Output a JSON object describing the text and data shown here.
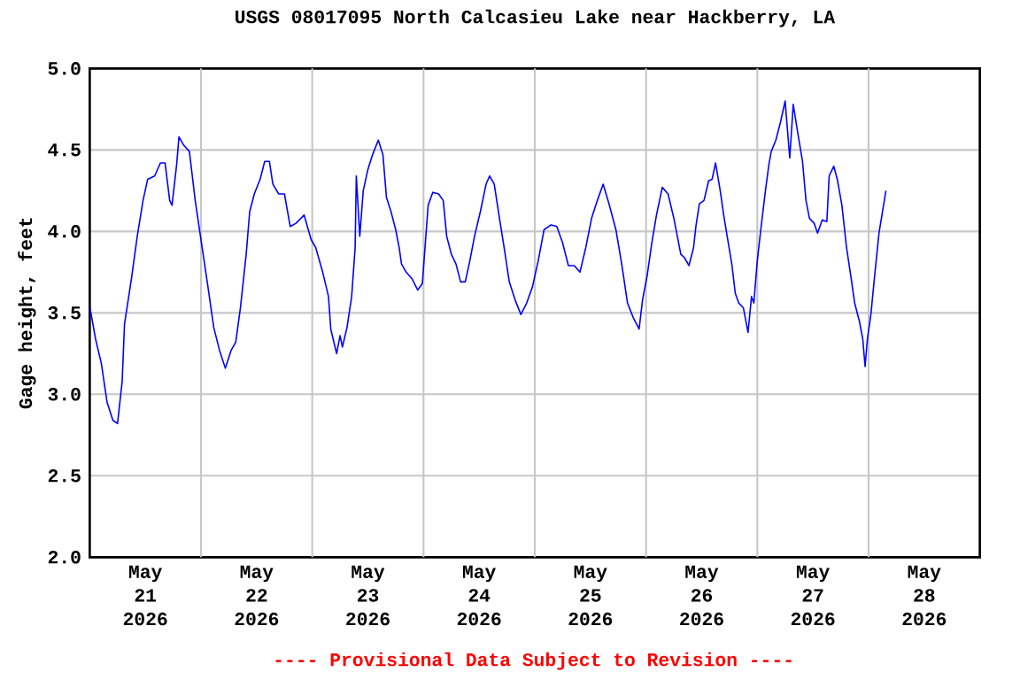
{
  "chart_data": {
    "type": "line",
    "title": "USGS 08017095 North Calcasieu Lake near Hackberry, LA",
    "ylabel": "Gage height, feet",
    "annotations": [
      "---- Provisional Data Subject to Revision ----"
    ],
    "x": [
      "2026-05-21T00:00",
      "2026-05-21T01:15",
      "2026-05-21T02:30",
      "2026-05-21T03:45",
      "2026-05-21T05:00",
      "2026-05-21T06:00",
      "2026-05-21T07:00",
      "2026-05-21T07:30",
      "2026-05-21T09:00",
      "2026-05-21T10:15",
      "2026-05-21T11:30",
      "2026-05-21T12:30",
      "2026-05-21T14:00",
      "2026-05-21T15:15",
      "2026-05-21T16:15",
      "2026-05-21T17:15",
      "2026-05-21T17:45",
      "2026-05-21T18:45",
      "2026-05-21T19:15",
      "2026-05-21T20:15",
      "2026-05-21T21:30",
      "2026-05-21T22:45",
      "2026-05-22T00:15",
      "2026-05-22T01:30",
      "2026-05-22T02:45",
      "2026-05-22T04:00",
      "2026-05-22T05:15",
      "2026-05-22T06:30",
      "2026-05-22T07:30",
      "2026-05-22T08:30",
      "2026-05-22T09:45",
      "2026-05-22T10:30",
      "2026-05-22T11:30",
      "2026-05-22T12:45",
      "2026-05-22T13:45",
      "2026-05-22T14:45",
      "2026-05-22T15:30",
      "2026-05-22T16:45",
      "2026-05-22T18:00",
      "2026-05-22T19:15",
      "2026-05-22T20:30",
      "2026-05-22T22:15",
      "2026-05-22T23:45",
      "2026-05-23T00:45",
      "2026-05-23T02:15",
      "2026-05-23T03:30",
      "2026-05-23T04:00",
      "2026-05-23T05:15",
      "2026-05-23T06:00",
      "2026-05-23T06:30",
      "2026-05-23T07:30",
      "2026-05-23T08:30",
      "2026-05-23T09:15",
      "2026-05-23T09:30",
      "2026-05-23T10:15",
      "2026-05-23T11:00",
      "2026-05-23T12:00",
      "2026-05-23T13:00",
      "2026-05-23T14:15",
      "2026-05-23T15:15",
      "2026-05-23T16:00",
      "2026-05-23T17:00",
      "2026-05-23T18:00",
      "2026-05-23T18:45",
      "2026-05-23T19:15",
      "2026-05-23T20:15",
      "2026-05-23T21:30",
      "2026-05-23T22:45",
      "2026-05-23T23:45",
      "2026-05-24T00:30",
      "2026-05-24T01:00",
      "2026-05-24T02:00",
      "2026-05-24T03:15",
      "2026-05-24T04:15",
      "2026-05-24T05:00",
      "2026-05-24T06:00",
      "2026-05-24T07:00",
      "2026-05-24T08:00",
      "2026-05-24T09:00",
      "2026-05-24T10:00",
      "2026-05-24T11:00",
      "2026-05-24T12:15",
      "2026-05-24T13:30",
      "2026-05-24T14:15",
      "2026-05-24T15:15",
      "2026-05-24T16:30",
      "2026-05-24T17:30",
      "2026-05-24T18:30",
      "2026-05-24T19:45",
      "2026-05-24T21:00",
      "2026-05-24T22:15",
      "2026-05-24T23:30",
      "2026-05-25T00:45",
      "2026-05-25T02:00",
      "2026-05-25T03:30",
      "2026-05-25T04:45",
      "2026-05-25T06:00",
      "2026-05-25T07:15",
      "2026-05-25T08:30",
      "2026-05-25T09:45",
      "2026-05-25T11:00",
      "2026-05-25T12:15",
      "2026-05-25T13:30",
      "2026-05-25T14:45",
      "2026-05-25T16:00",
      "2026-05-25T17:30",
      "2026-05-25T18:45",
      "2026-05-25T20:00",
      "2026-05-25T21:15",
      "2026-05-25T22:30",
      "2026-05-25T23:15",
      "2026-05-26T00:15",
      "2026-05-26T01:15",
      "2026-05-26T02:15",
      "2026-05-26T03:30",
      "2026-05-26T04:45",
      "2026-05-26T06:00",
      "2026-05-26T07:30",
      "2026-05-26T08:15",
      "2026-05-26T09:15",
      "2026-05-26T10:15",
      "2026-05-26T10:45",
      "2026-05-26T11:30",
      "2026-05-26T12:30",
      "2026-05-26T13:30",
      "2026-05-26T14:15",
      "2026-05-26T15:00",
      "2026-05-26T16:00",
      "2026-05-26T16:45",
      "2026-05-26T17:30",
      "2026-05-26T18:30",
      "2026-05-26T19:15",
      "2026-05-26T20:00",
      "2026-05-26T21:00",
      "2026-05-26T22:00",
      "2026-05-26T22:45",
      "2026-05-26T23:15",
      "2026-05-27T00:00",
      "2026-05-27T00:45",
      "2026-05-27T01:45",
      "2026-05-27T02:30",
      "2026-05-27T03:00",
      "2026-05-27T04:00",
      "2026-05-27T05:00",
      "2026-05-27T06:00",
      "2026-05-27T07:00",
      "2026-05-27T07:45",
      "2026-05-27T08:45",
      "2026-05-27T09:45",
      "2026-05-27T10:30",
      "2026-05-27T11:15",
      "2026-05-27T12:15",
      "2026-05-27T13:00",
      "2026-05-27T14:00",
      "2026-05-27T15:00",
      "2026-05-27T15:30",
      "2026-05-27T16:30",
      "2026-05-27T17:15",
      "2026-05-27T18:15",
      "2026-05-27T19:15",
      "2026-05-27T20:15",
      "2026-05-27T21:00",
      "2026-05-27T22:00",
      "2026-05-27T22:45",
      "2026-05-27T23:15",
      "2026-05-27T23:45",
      "2026-05-28T00:30",
      "2026-05-28T01:15",
      "2026-05-28T02:15",
      "2026-05-28T03:00",
      "2026-05-28T03:45"
    ],
    "series": [
      {
        "color": "#0000ff",
        "values": [
          3.54,
          3.34,
          3.19,
          2.95,
          2.84,
          2.82,
          3.08,
          3.43,
          3.71,
          3.97,
          4.19,
          4.32,
          4.34,
          4.42,
          4.42,
          4.19,
          4.16,
          4.41,
          4.58,
          4.53,
          4.49,
          4.19,
          3.9,
          3.66,
          3.41,
          3.27,
          3.16,
          3.27,
          3.32,
          3.53,
          3.86,
          4.12,
          4.23,
          4.32,
          4.43,
          4.43,
          4.29,
          4.23,
          4.23,
          4.03,
          4.05,
          4.1,
          3.95,
          3.9,
          3.75,
          3.6,
          3.4,
          3.25,
          3.36,
          3.29,
          3.41,
          3.6,
          3.9,
          4.34,
          3.97,
          4.25,
          4.38,
          4.47,
          4.56,
          4.47,
          4.21,
          4.12,
          4.01,
          3.9,
          3.8,
          3.75,
          3.71,
          3.64,
          3.68,
          3.97,
          4.16,
          4.24,
          4.23,
          4.19,
          3.97,
          3.86,
          3.8,
          3.69,
          3.69,
          3.82,
          3.97,
          4.12,
          4.29,
          4.34,
          4.29,
          4.06,
          3.88,
          3.69,
          3.58,
          3.49,
          3.56,
          3.66,
          3.82,
          4.01,
          4.04,
          4.03,
          3.93,
          3.79,
          3.79,
          3.75,
          3.9,
          4.08,
          4.19,
          4.29,
          4.17,
          4.01,
          3.8,
          3.56,
          3.47,
          3.4,
          3.58,
          3.73,
          3.93,
          4.1,
          4.27,
          4.23,
          4.08,
          3.86,
          3.84,
          3.79,
          3.9,
          4.03,
          4.17,
          4.19,
          4.31,
          4.32,
          4.42,
          4.25,
          4.1,
          3.97,
          3.8,
          3.62,
          3.56,
          3.53,
          3.38,
          3.6,
          3.56,
          3.82,
          4.01,
          4.25,
          4.41,
          4.49,
          4.56,
          4.67,
          4.8,
          4.45,
          4.78,
          4.6,
          4.43,
          4.19,
          4.08,
          4.05,
          3.99,
          4.07,
          4.06,
          4.34,
          4.4,
          4.32,
          4.16,
          3.9,
          3.71,
          3.56,
          3.45,
          3.34,
          3.17,
          3.34,
          3.49,
          3.71,
          3.99,
          4.12,
          4.25
        ]
      }
    ],
    "xlim": [
      "2026-05-21T00:00",
      "2026-05-29T00:00"
    ],
    "xticks": [
      {
        "value": "2026-05-21T12:00",
        "label": "May 21 2026"
      },
      {
        "value": "2026-05-22T12:00",
        "label": "May 22 2026"
      },
      {
        "value": "2026-05-23T12:00",
        "label": "May 23 2026"
      },
      {
        "value": "2026-05-24T12:00",
        "label": "May 24 2026"
      },
      {
        "value": "2026-05-25T12:00",
        "label": "May 25 2026"
      },
      {
        "value": "2026-05-26T12:00",
        "label": "May 26 2026"
      },
      {
        "value": "2026-05-27T12:00",
        "label": "May 27 2026"
      },
      {
        "value": "2026-05-28T12:00",
        "label": "May 28 2026"
      },
      {
        "value": "2026-05-22T00:00",
        "label": null
      },
      {
        "value": "2026-05-23T00:00",
        "label": null
      },
      {
        "value": "2026-05-24T00:00",
        "label": null
      },
      {
        "value": "2026-05-25T00:00",
        "label": null
      },
      {
        "value": "2026-05-26T00:00",
        "label": null
      },
      {
        "value": "2026-05-27T00:00",
        "label": null
      },
      {
        "value": "2026-05-28T00:00",
        "label": null
      }
    ],
    "ylim": [
      2,
      5
    ],
    "yticks": [
      {
        "value": 2,
        "label": "2.0"
      },
      {
        "value": 2.5,
        "label": "2.5"
      },
      {
        "value": 3,
        "label": "3.0"
      },
      {
        "value": 3.5,
        "label": "3.5"
      },
      {
        "value": 4,
        "label": "4.0"
      },
      {
        "value": 4.5,
        "label": "4.5"
      },
      {
        "value": 5,
        "label": "5.0"
      }
    ],
    "grid": true,
    "line_style": "solid",
    "marker": "none"
  }
}
